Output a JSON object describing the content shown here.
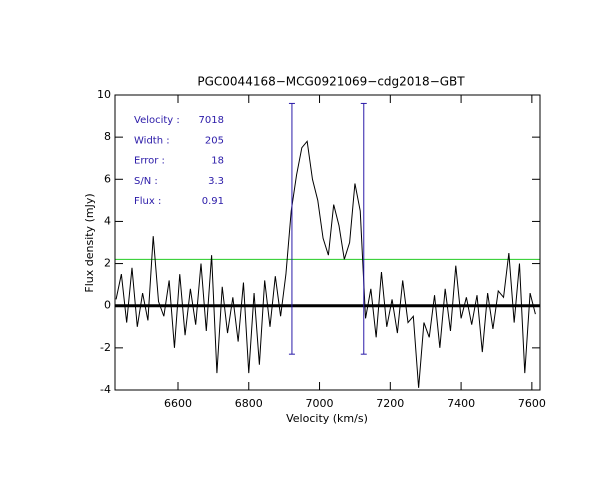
{
  "chart_data": {
    "type": "line",
    "title": "PGC0044168−MCG0921069−cdg2018−GBT",
    "x_label": "Velocity (km/s)",
    "y_label": "Flux density (mJy)",
    "x": [
      6425,
      6440,
      6455,
      6470,
      6485,
      6500,
      6515,
      6530,
      6545,
      6560,
      6575,
      6590,
      6605,
      6620,
      6635,
      6650,
      6665,
      6680,
      6695,
      6710,
      6725,
      6740,
      6755,
      6770,
      6785,
      6800,
      6815,
      6830,
      6845,
      6860,
      6875,
      6890,
      6905,
      6920,
      6935,
      6950,
      6965,
      6980,
      6995,
      7010,
      7025,
      7040,
      7055,
      7070,
      7085,
      7100,
      7115,
      7130,
      7145,
      7160,
      7175,
      7190,
      7205,
      7220,
      7235,
      7250,
      7265,
      7280,
      7295,
      7310,
      7325,
      7340,
      7355,
      7370,
      7385,
      7400,
      7415,
      7430,
      7445,
      7460,
      7475,
      7490,
      7505,
      7520,
      7535,
      7550,
      7565,
      7580,
      7595,
      7610
    ],
    "series": [
      {
        "color": "#000000",
        "values": [
          0.3,
          1.5,
          -0.8,
          1.8,
          -1.0,
          0.6,
          -0.7,
          3.3,
          0.2,
          -0.5,
          1.2,
          -2.0,
          1.5,
          -1.4,
          0.8,
          -0.9,
          2.0,
          -1.2,
          2.4,
          -3.2,
          0.9,
          -1.3,
          0.4,
          -1.7,
          1.1,
          -3.2,
          0.6,
          -2.8,
          1.2,
          -1.0,
          1.4,
          -0.5,
          1.5,
          4.5,
          6.2,
          7.5,
          7.8,
          6.0,
          5.0,
          3.2,
          2.4,
          4.8,
          3.8,
          2.2,
          3.0,
          5.8,
          4.5,
          -0.6,
          0.8,
          -1.5,
          1.6,
          -1.0,
          0.3,
          -1.3,
          1.2,
          -0.8,
          -0.5,
          -3.9,
          -0.8,
          -1.5,
          0.5,
          -2.0,
          0.8,
          -1.2,
          1.9,
          -0.6,
          0.4,
          -0.9,
          0.5,
          -2.2,
          0.6,
          -1.1,
          0.7,
          0.4,
          2.5,
          -0.8,
          2.0,
          -3.2,
          0.6,
          -0.4
        ]
      }
    ],
    "xlim": [
      6422,
      7623
    ],
    "ylim": [
      -4,
      10
    ],
    "xticks": [
      6600,
      6800,
      7000,
      7200,
      7400,
      7600
    ],
    "yticks": [
      -4,
      -2,
      0,
      2,
      4,
      6,
      8,
      10
    ],
    "baseline": {
      "value": 0,
      "color": "#000000"
    },
    "threshold": {
      "value": 2.2,
      "color": "#22cc22"
    },
    "window": {
      "x": [
        6922,
        7125
      ],
      "y": [
        -2.3,
        9.6
      ],
      "color": "#2a1aa8"
    },
    "annotations": [
      {
        "label": "Velocity :",
        "value": "7018"
      },
      {
        "label": "Width :",
        "value": "205"
      },
      {
        "label": "Error :",
        "value": "18"
      },
      {
        "label": "S/N :",
        "value": "3.3"
      },
      {
        "label": "Flux :",
        "value": "0.91"
      }
    ]
  }
}
